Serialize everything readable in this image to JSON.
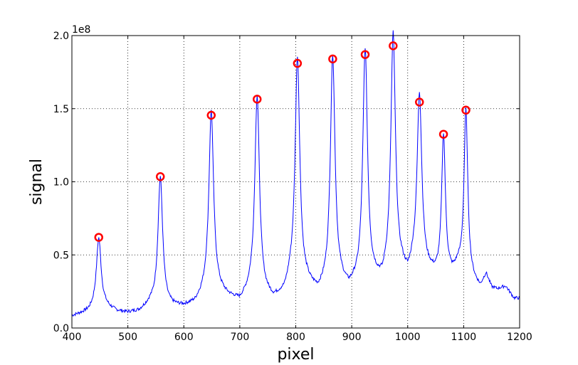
{
  "chart_data": {
    "type": "line",
    "xlabel": "pixel",
    "ylabel": "signal",
    "y_offset_label": "1e8",
    "xlim": [
      400,
      1200
    ],
    "ylim": [
      0,
      200000000
    ],
    "grid": true,
    "grid_style": "dotted",
    "x_ticks": [
      400,
      500,
      600,
      700,
      800,
      900,
      1000,
      1100,
      1200
    ],
    "x_tick_labels": [
      "400",
      "500",
      "600",
      "700",
      "800",
      "900",
      "1000",
      "1100",
      "1200"
    ],
    "y_ticks": [
      0,
      50000000,
      100000000,
      150000000,
      200000000
    ],
    "y_tick_labels": [
      "0.0",
      "0.5",
      "1.0",
      "1.5",
      "2.0"
    ],
    "series": [
      {
        "color": "#0000ff",
        "baseline": [
          [
            400,
            8000000
          ],
          [
            430,
            11000000
          ],
          [
            440,
            13000000
          ],
          [
            460,
            14000000
          ],
          [
            480,
            11000000
          ],
          [
            500,
            10000000
          ],
          [
            520,
            11000000
          ],
          [
            540,
            16000000
          ],
          [
            580,
            14000000
          ],
          [
            600,
            14000000
          ],
          [
            620,
            16000000
          ],
          [
            640,
            24000000
          ],
          [
            660,
            24000000
          ],
          [
            680,
            20000000
          ],
          [
            700,
            17000000
          ],
          [
            720,
            24000000
          ],
          [
            740,
            22000000
          ],
          [
            760,
            18000000
          ],
          [
            780,
            22000000
          ],
          [
            790,
            30000000
          ],
          [
            820,
            28000000
          ],
          [
            840,
            22000000
          ],
          [
            850,
            25000000
          ],
          [
            880,
            28000000
          ],
          [
            895,
            24000000
          ],
          [
            905,
            27000000
          ],
          [
            940,
            30000000
          ],
          [
            955,
            28000000
          ],
          [
            960,
            32000000
          ],
          [
            990,
            36000000
          ],
          [
            1000,
            32000000
          ],
          [
            1010,
            40000000
          ],
          [
            1040,
            36000000
          ],
          [
            1050,
            34000000
          ],
          [
            1080,
            35000000
          ],
          [
            1090,
            40000000
          ],
          [
            1120,
            30000000
          ],
          [
            1130,
            27000000
          ],
          [
            1140,
            36000000
          ],
          [
            1150,
            27000000
          ],
          [
            1160,
            26000000
          ],
          [
            1175,
            28000000
          ],
          [
            1190,
            20000000
          ],
          [
            1200,
            20000000
          ]
        ],
        "peaks": [
          {
            "x": 448,
            "height": 48000000,
            "width": 5
          },
          {
            "x": 558,
            "height": 88000000,
            "width": 5
          },
          {
            "x": 649,
            "height": 124000000,
            "width": 5
          },
          {
            "x": 731,
            "height": 135000000,
            "width": 5
          },
          {
            "x": 803,
            "height": 155000000,
            "width": 5
          },
          {
            "x": 866,
            "height": 158000000,
            "width": 5
          },
          {
            "x": 924,
            "height": 160000000,
            "width": 5
          },
          {
            "x": 974,
            "height": 165000000,
            "width": 5
          },
          {
            "x": 1021,
            "height": 120000000,
            "width": 5
          },
          {
            "x": 1064,
            "height": 96000000,
            "width": 4
          },
          {
            "x": 1104,
            "height": 113000000,
            "width": 4
          }
        ]
      }
    ],
    "markers": {
      "color": "#ff0000",
      "points": [
        [
          448,
          62000000
        ],
        [
          558,
          103500000
        ],
        [
          649,
          145500000
        ],
        [
          731,
          156500000
        ],
        [
          803,
          181000000
        ],
        [
          866,
          184000000
        ],
        [
          924,
          187000000
        ],
        [
          974,
          193000000
        ],
        [
          1021,
          154500000
        ],
        [
          1064,
          132500000
        ],
        [
          1104,
          149000000
        ]
      ]
    }
  }
}
